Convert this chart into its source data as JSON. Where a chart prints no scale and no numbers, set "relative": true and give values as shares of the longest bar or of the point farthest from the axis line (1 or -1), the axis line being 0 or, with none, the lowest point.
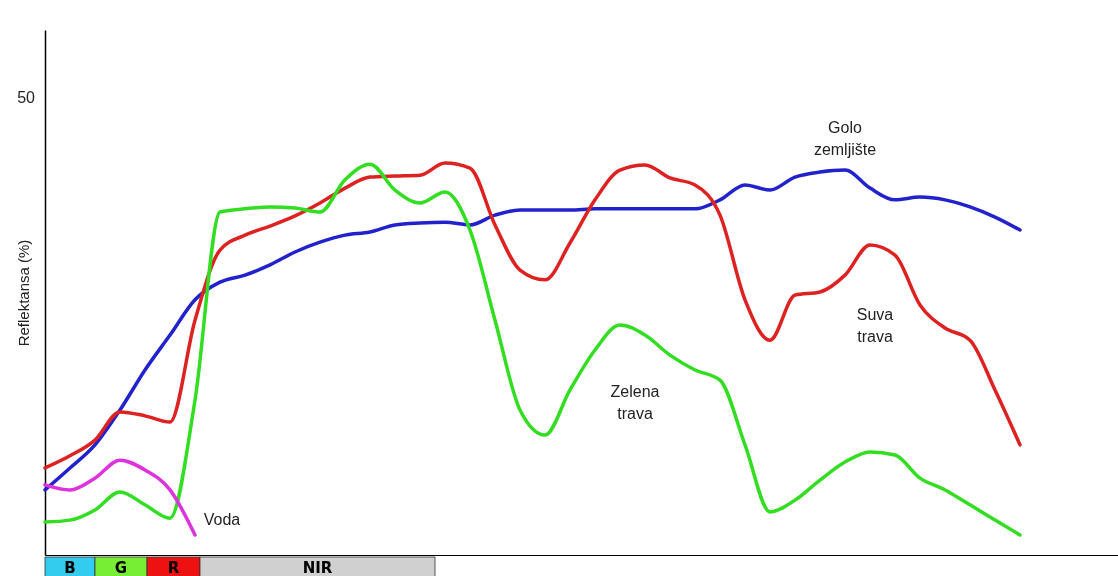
{
  "chart_data": {
    "type": "line",
    "relative": true,
    "ylabel": "Reflektansa (%)",
    "categories": [
      null,
      null,
      null,
      null,
      null,
      null,
      null,
      null,
      null,
      null,
      null,
      null,
      null,
      null,
      null,
      null,
      null,
      null,
      null,
      null,
      null,
      null,
      null,
      null,
      null,
      null,
      null,
      null,
      null,
      null,
      null,
      null,
      null,
      null,
      null,
      null,
      null,
      null,
      null,
      null
    ],
    "series": [
      {
        "name": "Golo zemljište",
        "color": "#2222cc",
        "values": [
          0.166,
          0.222,
          0.281,
          0.37,
          0.472,
          0.561,
          0.651,
          0.696,
          0.714,
          0.74,
          0.773,
          0.798,
          0.816,
          0.824,
          0.842,
          0.847,
          0.849,
          0.842,
          0.867,
          0.88,
          0.88,
          0.88,
          0.883,
          0.883,
          0.883,
          0.883,
          0.883,
          0.906,
          0.944,
          0.931,
          0.964,
          0.977,
          0.982,
          0.936,
          0.906,
          0.913,
          0.906,
          0.888,
          0.862,
          0.829
        ]
      },
      {
        "name": "Suva trava",
        "color": "#dd2222",
        "values": [
          0.222,
          0.253,
          0.293,
          0.365,
          0.355,
          0.339,
          0.599,
          0.778,
          0.816,
          0.839,
          0.865,
          0.898,
          0.936,
          0.964,
          0.967,
          0.969,
          1,
          0.987,
          0.842,
          0.727,
          0.702,
          0.796,
          0.906,
          0.982,
          0.995,
          0.962,
          0.944,
          0.867,
          0.651,
          0.548,
          0.663,
          0.671,
          0.714,
          0.791,
          0.765,
          0.638,
          0.579,
          0.548,
          0.421,
          0.281
        ]
      },
      {
        "name": "Zelena trava",
        "color": "#33dd22",
        "values": [
          0.084,
          0.089,
          0.115,
          0.161,
          0.128,
          0.094,
          0.395,
          0.875,
          0.883,
          0.888,
          0.885,
          0.875,
          0.957,
          0.997,
          0.931,
          0.898,
          0.926,
          0.829,
          0.599,
          0.37,
          0.306,
          0.421,
          0.523,
          0.587,
          0.561,
          0.51,
          0.472,
          0.446,
          0.281,
          0.11,
          0.14,
          0.191,
          0.237,
          0.263,
          0.255,
          0.196,
          0.166,
          0.128,
          0.089,
          0.051
        ]
      },
      {
        "name": "Voda",
        "color": "#dd33dd",
        "values": [
          0.179,
          0.166,
          0.196,
          0.242,
          0.217,
          0.166,
          0.051,
          null,
          null,
          null,
          null,
          null,
          null,
          null,
          null,
          null,
          null,
          null,
          null,
          null,
          null,
          null,
          null,
          null,
          null,
          null,
          null,
          null,
          null,
          null,
          null,
          null,
          null,
          null,
          null,
          null,
          null,
          null,
          null,
          null
        ]
      }
    ],
    "annotations": [
      "50",
      "B",
      "G",
      "R",
      "NIR"
    ]
  }
}
